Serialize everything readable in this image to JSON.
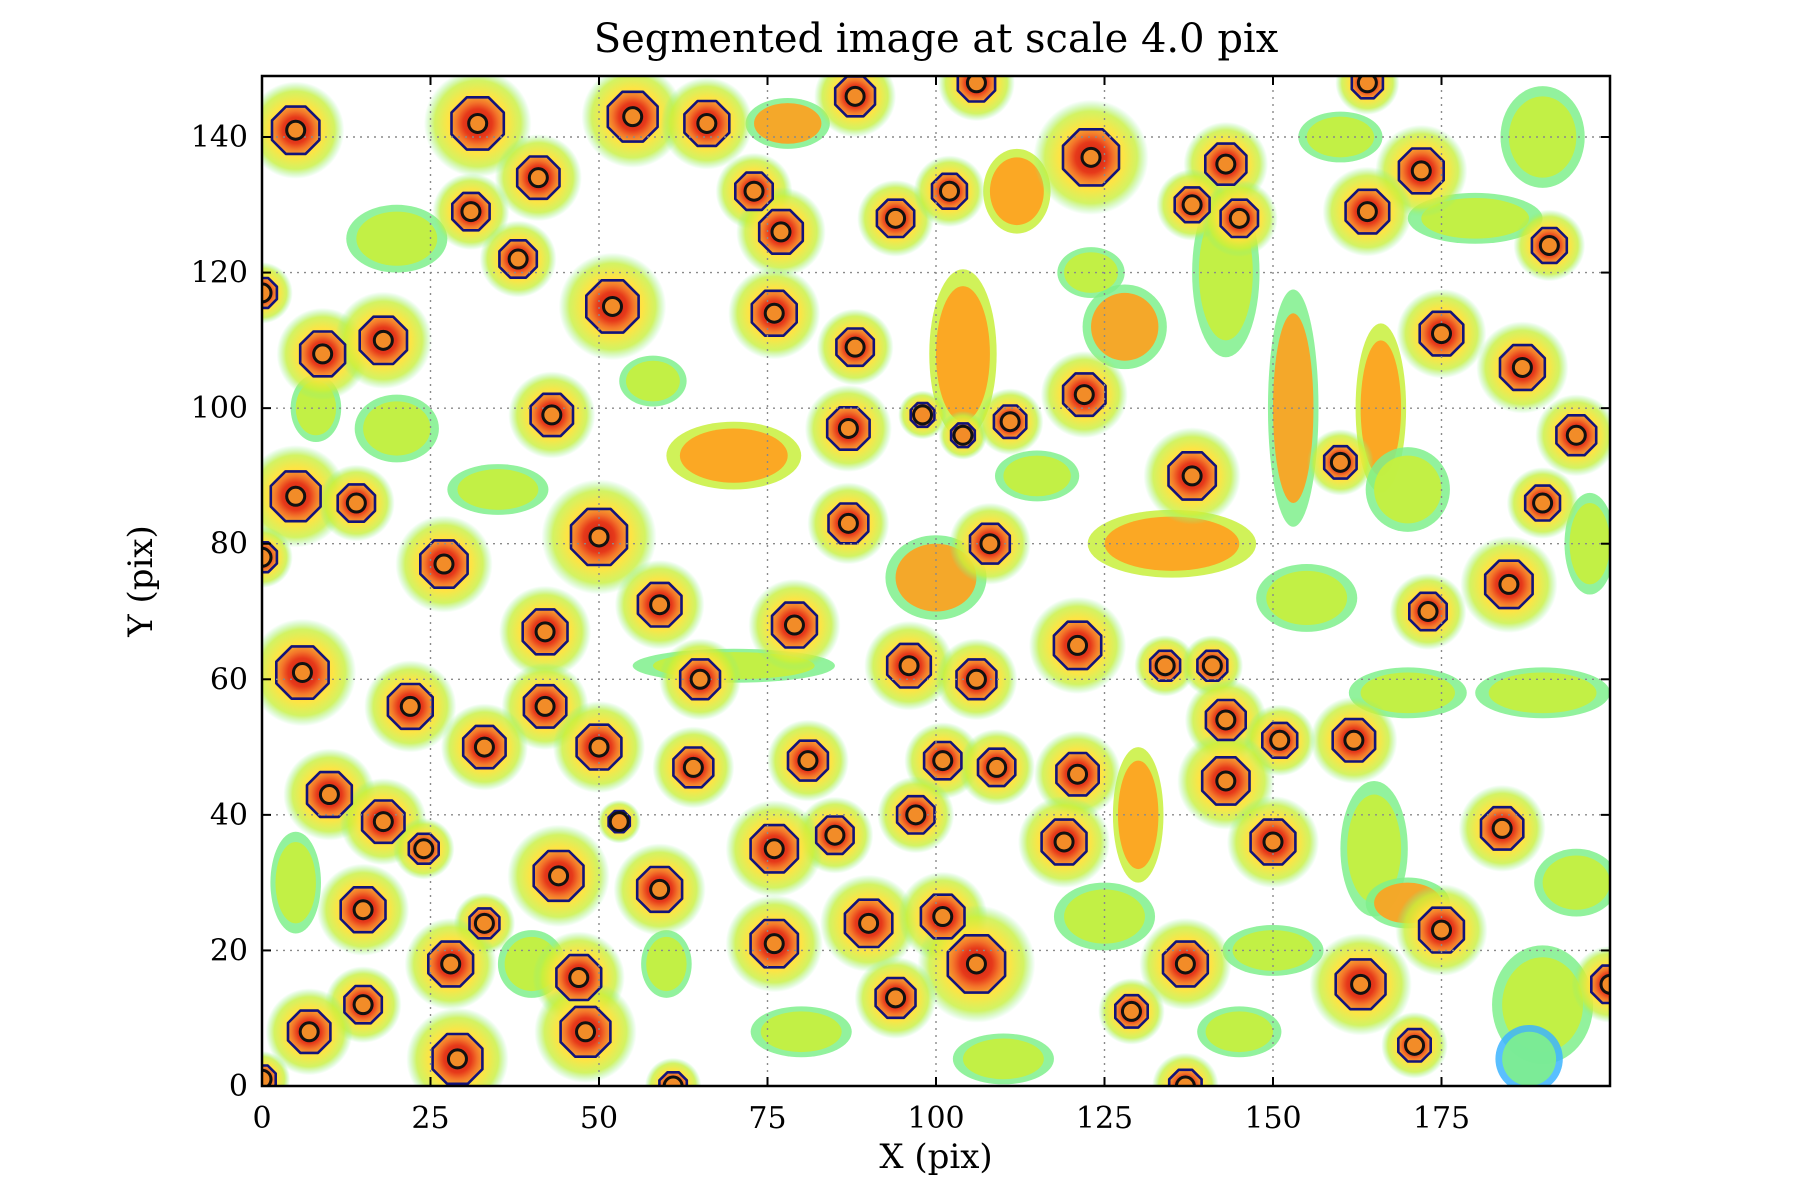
{
  "chart_data": {
    "type": "heatmap",
    "title": "Segmented image at scale 4.0 pix",
    "xlabel": "X (pix)",
    "ylabel": "Y (pix)",
    "xlim": [
      0,
      200
    ],
    "ylim": [
      0,
      149
    ],
    "xticks": [
      0,
      25,
      50,
      75,
      100,
      125,
      150,
      175
    ],
    "yticks": [
      0,
      20,
      40,
      60,
      80,
      100,
      120,
      140
    ],
    "xtick_labels": [
      "0",
      "25",
      "50",
      "75",
      "100",
      "125",
      "150",
      "175"
    ],
    "ytick_labels": [
      "0",
      "20",
      "40",
      "60",
      "80",
      "100",
      "120",
      "140"
    ],
    "grid": true,
    "colormap": "jet",
    "colors": {
      "segment_fill": "#f58231",
      "segment_core": "#c81e12",
      "contour": "#13137a",
      "marker": "#f28c28",
      "background_noise": [
        "#ffe23a",
        "#c8f03c",
        "#7ff08c",
        "#3cb4ff",
        "#1e3cff"
      ]
    },
    "segments": [
      {
        "x": 5,
        "y": 141,
        "r": 3.8
      },
      {
        "x": 32,
        "y": 142,
        "r": 4.2
      },
      {
        "x": 55,
        "y": 143,
        "r": 4.0
      },
      {
        "x": 66,
        "y": 142,
        "r": 3.6
      },
      {
        "x": 88,
        "y": 146,
        "r": 3.2
      },
      {
        "x": 106,
        "y": 148,
        "r": 3.0
      },
      {
        "x": 164,
        "y": 148,
        "r": 2.5
      },
      {
        "x": 123,
        "y": 137,
        "r": 4.5
      },
      {
        "x": 41,
        "y": 134,
        "r": 3.4
      },
      {
        "x": 143,
        "y": 136,
        "r": 3.3
      },
      {
        "x": 172,
        "y": 135,
        "r": 3.6
      },
      {
        "x": 31,
        "y": 129,
        "r": 3.0
      },
      {
        "x": 73,
        "y": 132,
        "r": 3.0
      },
      {
        "x": 77,
        "y": 126,
        "r": 3.5
      },
      {
        "x": 94,
        "y": 128,
        "r": 3.0
      },
      {
        "x": 102,
        "y": 132,
        "r": 2.8
      },
      {
        "x": 138,
        "y": 130,
        "r": 2.8
      },
      {
        "x": 145,
        "y": 128,
        "r": 3.0
      },
      {
        "x": 164,
        "y": 129,
        "r": 3.5
      },
      {
        "x": 191,
        "y": 124,
        "r": 2.8
      },
      {
        "x": 38,
        "y": 122,
        "r": 3.0
      },
      {
        "x": 52,
        "y": 115,
        "r": 4.2
      },
      {
        "x": 0,
        "y": 117,
        "r": 2.4
      },
      {
        "x": 76,
        "y": 114,
        "r": 3.6
      },
      {
        "x": 9,
        "y": 108,
        "r": 3.6
      },
      {
        "x": 18,
        "y": 110,
        "r": 3.8
      },
      {
        "x": 88,
        "y": 109,
        "r": 3.0
      },
      {
        "x": 175,
        "y": 111,
        "r": 3.5
      },
      {
        "x": 187,
        "y": 106,
        "r": 3.6
      },
      {
        "x": 122,
        "y": 102,
        "r": 3.4
      },
      {
        "x": 43,
        "y": 99,
        "r": 3.4
      },
      {
        "x": 87,
        "y": 97,
        "r": 3.4
      },
      {
        "x": 98,
        "y": 99,
        "r": 1.9
      },
      {
        "x": 104,
        "y": 96,
        "r": 1.9
      },
      {
        "x": 111,
        "y": 98,
        "r": 2.6
      },
      {
        "x": 195,
        "y": 96,
        "r": 3.2
      },
      {
        "x": 138,
        "y": 90,
        "r": 3.8
      },
      {
        "x": 160,
        "y": 92,
        "r": 2.6
      },
      {
        "x": 5,
        "y": 87,
        "r": 4.0
      },
      {
        "x": 14,
        "y": 86,
        "r": 3.0
      },
      {
        "x": 190,
        "y": 86,
        "r": 2.8
      },
      {
        "x": 50,
        "y": 81,
        "r": 4.5
      },
      {
        "x": 87,
        "y": 83,
        "r": 3.2
      },
      {
        "x": 108,
        "y": 80,
        "r": 3.2
      },
      {
        "x": 0,
        "y": 78,
        "r": 2.4
      },
      {
        "x": 27,
        "y": 77,
        "r": 3.8
      },
      {
        "x": 185,
        "y": 74,
        "r": 3.8
      },
      {
        "x": 59,
        "y": 71,
        "r": 3.5
      },
      {
        "x": 173,
        "y": 70,
        "r": 3.0
      },
      {
        "x": 79,
        "y": 68,
        "r": 3.6
      },
      {
        "x": 42,
        "y": 67,
        "r": 3.6
      },
      {
        "x": 121,
        "y": 65,
        "r": 3.8
      },
      {
        "x": 6,
        "y": 61,
        "r": 4.2
      },
      {
        "x": 96,
        "y": 62,
        "r": 3.5
      },
      {
        "x": 65,
        "y": 60,
        "r": 3.2
      },
      {
        "x": 106,
        "y": 60,
        "r": 3.2
      },
      {
        "x": 134,
        "y": 62,
        "r": 2.4
      },
      {
        "x": 141,
        "y": 62,
        "r": 2.4
      },
      {
        "x": 22,
        "y": 56,
        "r": 3.6
      },
      {
        "x": 42,
        "y": 56,
        "r": 3.4
      },
      {
        "x": 143,
        "y": 54,
        "r": 3.2
      },
      {
        "x": 50,
        "y": 50,
        "r": 3.6
      },
      {
        "x": 33,
        "y": 50,
        "r": 3.4
      },
      {
        "x": 151,
        "y": 51,
        "r": 2.8
      },
      {
        "x": 162,
        "y": 51,
        "r": 3.4
      },
      {
        "x": 81,
        "y": 48,
        "r": 3.2
      },
      {
        "x": 101,
        "y": 48,
        "r": 3.0
      },
      {
        "x": 109,
        "y": 47,
        "r": 3.0
      },
      {
        "x": 64,
        "y": 47,
        "r": 3.2
      },
      {
        "x": 121,
        "y": 46,
        "r": 3.4
      },
      {
        "x": 143,
        "y": 45,
        "r": 3.8
      },
      {
        "x": 10,
        "y": 43,
        "r": 3.6
      },
      {
        "x": 18,
        "y": 39,
        "r": 3.4
      },
      {
        "x": 53,
        "y": 39,
        "r": 1.7
      },
      {
        "x": 97,
        "y": 40,
        "r": 3.0
      },
      {
        "x": 85,
        "y": 37,
        "r": 3.0
      },
      {
        "x": 119,
        "y": 36,
        "r": 3.6
      },
      {
        "x": 150,
        "y": 36,
        "r": 3.6
      },
      {
        "x": 184,
        "y": 38,
        "r": 3.4
      },
      {
        "x": 24,
        "y": 35,
        "r": 2.4
      },
      {
        "x": 76,
        "y": 35,
        "r": 3.8
      },
      {
        "x": 44,
        "y": 31,
        "r": 4.0
      },
      {
        "x": 59,
        "y": 29,
        "r": 3.6
      },
      {
        "x": 15,
        "y": 26,
        "r": 3.6
      },
      {
        "x": 33,
        "y": 24,
        "r": 2.4
      },
      {
        "x": 90,
        "y": 24,
        "r": 3.8
      },
      {
        "x": 101,
        "y": 25,
        "r": 3.5
      },
      {
        "x": 175,
        "y": 23,
        "r": 3.6
      },
      {
        "x": 76,
        "y": 21,
        "r": 3.8
      },
      {
        "x": 28,
        "y": 18,
        "r": 3.6
      },
      {
        "x": 106,
        "y": 18,
        "r": 4.6
      },
      {
        "x": 137,
        "y": 18,
        "r": 3.6
      },
      {
        "x": 47,
        "y": 16,
        "r": 3.6
      },
      {
        "x": 200,
        "y": 15,
        "r": 3.0
      },
      {
        "x": 163,
        "y": 15,
        "r": 4.0
      },
      {
        "x": 94,
        "y": 13,
        "r": 3.2
      },
      {
        "x": 15,
        "y": 12,
        "r": 3.0
      },
      {
        "x": 129,
        "y": 11,
        "r": 2.6
      },
      {
        "x": 48,
        "y": 8,
        "r": 4.0
      },
      {
        "x": 7,
        "y": 8,
        "r": 3.4
      },
      {
        "x": 171,
        "y": 6,
        "r": 2.6
      },
      {
        "x": 29,
        "y": 4,
        "r": 4.0
      },
      {
        "x": 0,
        "y": 1,
        "r": 2.2
      },
      {
        "x": 61,
        "y": 0,
        "r": 2.2
      },
      {
        "x": 137,
        "y": 0,
        "r": 2.6
      }
    ],
    "peaks": [
      {
        "x": 5,
        "y": 141
      },
      {
        "x": 32,
        "y": 142
      },
      {
        "x": 55,
        "y": 143
      },
      {
        "x": 66,
        "y": 142
      },
      {
        "x": 88,
        "y": 146
      },
      {
        "x": 106,
        "y": 148
      },
      {
        "x": 164,
        "y": 148
      },
      {
        "x": 123,
        "y": 137
      },
      {
        "x": 41,
        "y": 134
      },
      {
        "x": 143,
        "y": 136
      },
      {
        "x": 172,
        "y": 135
      },
      {
        "x": 31,
        "y": 129
      },
      {
        "x": 73,
        "y": 132
      },
      {
        "x": 77,
        "y": 126
      },
      {
        "x": 94,
        "y": 128
      },
      {
        "x": 102,
        "y": 132
      },
      {
        "x": 138,
        "y": 130
      },
      {
        "x": 145,
        "y": 128
      },
      {
        "x": 164,
        "y": 129
      },
      {
        "x": 191,
        "y": 124
      },
      {
        "x": 38,
        "y": 122
      },
      {
        "x": 52,
        "y": 115
      },
      {
        "x": 0,
        "y": 117
      },
      {
        "x": 76,
        "y": 114
      },
      {
        "x": 9,
        "y": 108
      },
      {
        "x": 18,
        "y": 110
      },
      {
        "x": 88,
        "y": 109
      },
      {
        "x": 175,
        "y": 111
      },
      {
        "x": 187,
        "y": 106
      },
      {
        "x": 122,
        "y": 102
      },
      {
        "x": 43,
        "y": 99
      },
      {
        "x": 87,
        "y": 97
      },
      {
        "x": 98,
        "y": 99
      },
      {
        "x": 104,
        "y": 96
      },
      {
        "x": 111,
        "y": 98
      },
      {
        "x": 195,
        "y": 96
      },
      {
        "x": 138,
        "y": 90
      },
      {
        "x": 160,
        "y": 92
      },
      {
        "x": 5,
        "y": 87
      },
      {
        "x": 14,
        "y": 86
      },
      {
        "x": 190,
        "y": 86
      },
      {
        "x": 50,
        "y": 81
      },
      {
        "x": 87,
        "y": 83
      },
      {
        "x": 108,
        "y": 80
      },
      {
        "x": 0,
        "y": 78
      },
      {
        "x": 27,
        "y": 77
      },
      {
        "x": 185,
        "y": 74
      },
      {
        "x": 59,
        "y": 71
      },
      {
        "x": 173,
        "y": 70
      },
      {
        "x": 79,
        "y": 68
      },
      {
        "x": 42,
        "y": 67
      },
      {
        "x": 121,
        "y": 65
      },
      {
        "x": 6,
        "y": 61
      },
      {
        "x": 96,
        "y": 62
      },
      {
        "x": 65,
        "y": 60
      },
      {
        "x": 106,
        "y": 60
      },
      {
        "x": 134,
        "y": 62
      },
      {
        "x": 141,
        "y": 62
      },
      {
        "x": 22,
        "y": 56
      },
      {
        "x": 42,
        "y": 56
      },
      {
        "x": 143,
        "y": 54
      },
      {
        "x": 50,
        "y": 50
      },
      {
        "x": 33,
        "y": 50
      },
      {
        "x": 151,
        "y": 51
      },
      {
        "x": 162,
        "y": 51
      },
      {
        "x": 81,
        "y": 48
      },
      {
        "x": 101,
        "y": 48
      },
      {
        "x": 109,
        "y": 47
      },
      {
        "x": 64,
        "y": 47
      },
      {
        "x": 121,
        "y": 46
      },
      {
        "x": 143,
        "y": 45
      },
      {
        "x": 10,
        "y": 43
      },
      {
        "x": 18,
        "y": 39
      },
      {
        "x": 53,
        "y": 39
      },
      {
        "x": 97,
        "y": 40
      },
      {
        "x": 85,
        "y": 37
      },
      {
        "x": 119,
        "y": 36
      },
      {
        "x": 150,
        "y": 36
      },
      {
        "x": 184,
        "y": 38
      },
      {
        "x": 24,
        "y": 35
      },
      {
        "x": 76,
        "y": 35
      },
      {
        "x": 44,
        "y": 31
      },
      {
        "x": 59,
        "y": 29
      },
      {
        "x": 15,
        "y": 26
      },
      {
        "x": 33,
        "y": 24
      },
      {
        "x": 90,
        "y": 24
      },
      {
        "x": 101,
        "y": 25
      },
      {
        "x": 175,
        "y": 23
      },
      {
        "x": 76,
        "y": 21
      },
      {
        "x": 28,
        "y": 18
      },
      {
        "x": 106,
        "y": 18
      },
      {
        "x": 137,
        "y": 18
      },
      {
        "x": 47,
        "y": 16
      },
      {
        "x": 200,
        "y": 15
      },
      {
        "x": 163,
        "y": 15
      },
      {
        "x": 94,
        "y": 13
      },
      {
        "x": 15,
        "y": 12
      },
      {
        "x": 129,
        "y": 11
      },
      {
        "x": 48,
        "y": 8
      },
      {
        "x": 7,
        "y": 8
      },
      {
        "x": 171,
        "y": 6
      },
      {
        "x": 29,
        "y": 4
      },
      {
        "x": 0,
        "y": 1
      },
      {
        "x": 61,
        "y": 0
      },
      {
        "x": 137,
        "y": 0
      }
    ],
    "background_blobs": [
      {
        "x": 70,
        "y": 93,
        "rx": 8,
        "ry": 4,
        "level": 0.55
      },
      {
        "x": 104,
        "y": 108,
        "rx": 4,
        "ry": 10,
        "level": 0.55
      },
      {
        "x": 128,
        "y": 112,
        "rx": 5,
        "ry": 5,
        "level": 0.45
      },
      {
        "x": 153,
        "y": 100,
        "rx": 3,
        "ry": 14,
        "level": 0.45
      },
      {
        "x": 166,
        "y": 100,
        "rx": 3,
        "ry": 10,
        "level": 0.5
      },
      {
        "x": 180,
        "y": 128,
        "rx": 8,
        "ry": 3,
        "level": 0.4
      },
      {
        "x": 190,
        "y": 140,
        "rx": 5,
        "ry": 6,
        "level": 0.4
      },
      {
        "x": 143,
        "y": 120,
        "rx": 4,
        "ry": 10,
        "level": 0.35
      },
      {
        "x": 20,
        "y": 125,
        "rx": 6,
        "ry": 4,
        "level": 0.35
      },
      {
        "x": 112,
        "y": 132,
        "rx": 4,
        "ry": 5,
        "level": 0.5
      },
      {
        "x": 78,
        "y": 142,
        "rx": 5,
        "ry": 3,
        "level": 0.45
      },
      {
        "x": 20,
        "y": 97,
        "rx": 5,
        "ry": 4,
        "level": 0.35
      },
      {
        "x": 35,
        "y": 88,
        "rx": 6,
        "ry": 3,
        "level": 0.3
      },
      {
        "x": 170,
        "y": 88,
        "rx": 5,
        "ry": 5,
        "level": 0.4
      },
      {
        "x": 135,
        "y": 80,
        "rx": 10,
        "ry": 4,
        "level": 0.5
      },
      {
        "x": 155,
        "y": 72,
        "rx": 6,
        "ry": 4,
        "level": 0.4
      },
      {
        "x": 100,
        "y": 75,
        "rx": 6,
        "ry": 5,
        "level": 0.45
      },
      {
        "x": 70,
        "y": 62,
        "rx": 12,
        "ry": 2,
        "level": 0.4
      },
      {
        "x": 170,
        "y": 58,
        "rx": 7,
        "ry": 3,
        "level": 0.35
      },
      {
        "x": 190,
        "y": 58,
        "rx": 8,
        "ry": 3,
        "level": 0.3
      },
      {
        "x": 130,
        "y": 40,
        "rx": 3,
        "ry": 8,
        "level": 0.5
      },
      {
        "x": 165,
        "y": 35,
        "rx": 4,
        "ry": 8,
        "level": 0.35
      },
      {
        "x": 195,
        "y": 30,
        "rx": 5,
        "ry": 4,
        "level": 0.35
      },
      {
        "x": 170,
        "y": 27,
        "rx": 5,
        "ry": 3,
        "level": 0.45
      },
      {
        "x": 125,
        "y": 25,
        "rx": 6,
        "ry": 4,
        "level": 0.35
      },
      {
        "x": 150,
        "y": 20,
        "rx": 6,
        "ry": 3,
        "level": 0.35
      },
      {
        "x": 190,
        "y": 12,
        "rx": 6,
        "ry": 7,
        "level": 0.2
      },
      {
        "x": 188,
        "y": 4,
        "rx": 4,
        "ry": 4,
        "level": 0.1
      },
      {
        "x": 5,
        "y": 30,
        "rx": 3,
        "ry": 6,
        "level": 0.35
      },
      {
        "x": 40,
        "y": 18,
        "rx": 4,
        "ry": 4,
        "level": 0.3
      },
      {
        "x": 110,
        "y": 4,
        "rx": 6,
        "ry": 3,
        "level": 0.35
      },
      {
        "x": 80,
        "y": 8,
        "rx": 6,
        "ry": 3,
        "level": 0.3
      },
      {
        "x": 60,
        "y": 18,
        "rx": 3,
        "ry": 4,
        "level": 0.3
      },
      {
        "x": 115,
        "y": 90,
        "rx": 5,
        "ry": 3,
        "level": 0.35
      },
      {
        "x": 8,
        "y": 100,
        "rx": 3,
        "ry": 4,
        "level": 0.3
      },
      {
        "x": 145,
        "y": 8,
        "rx": 5,
        "ry": 3,
        "level": 0.3
      },
      {
        "x": 123,
        "y": 120,
        "rx": 4,
        "ry": 3,
        "level": 0.35
      },
      {
        "x": 160,
        "y": 140,
        "rx": 5,
        "ry": 3,
        "level": 0.35
      },
      {
        "x": 197,
        "y": 80,
        "rx": 3,
        "ry": 6,
        "level": 0.3
      },
      {
        "x": 58,
        "y": 104,
        "rx": 4,
        "ry": 3,
        "level": 0.3
      }
    ]
  }
}
